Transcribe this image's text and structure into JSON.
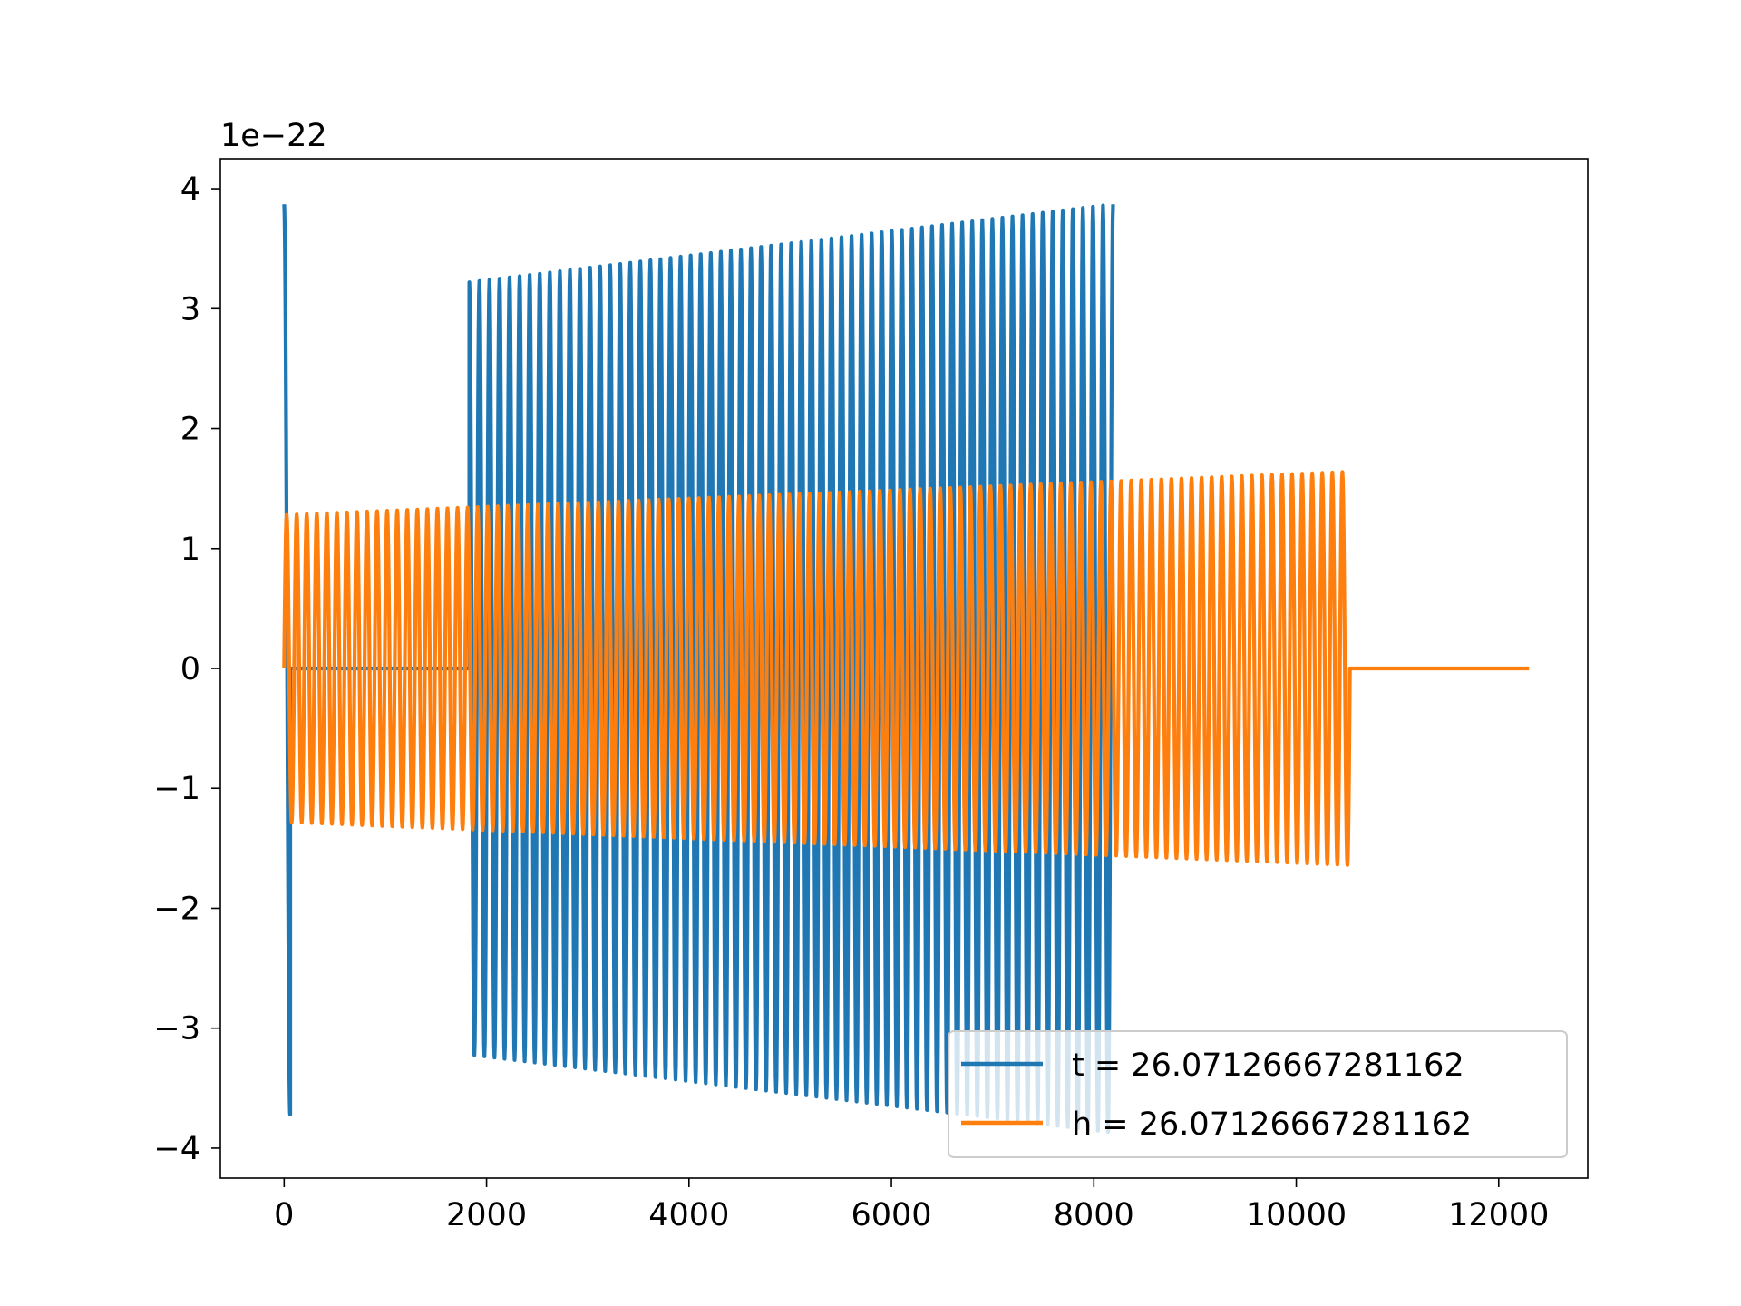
{
  "chart_data": {
    "type": "line",
    "title": "",
    "xlabel": "",
    "ylabel": "",
    "y_offset_label": "1e−22",
    "xlim": [
      -630,
      12880
    ],
    "ylim": [
      -4.25,
      4.25
    ],
    "x_ticks": [
      0,
      2000,
      4000,
      6000,
      8000,
      10000,
      12000
    ],
    "x_tick_labels": [
      "0",
      "2000",
      "4000",
      "6000",
      "8000",
      "10000",
      "12000"
    ],
    "y_ticks": [
      -4,
      -3,
      -2,
      -1,
      0,
      1,
      2,
      3,
      4
    ],
    "y_tick_labels": [
      "−4",
      "−3",
      "−2",
      "−1",
      "0",
      "1",
      "2",
      "3",
      "4"
    ],
    "grid": false,
    "legend_position": "lower-right",
    "series": [
      {
        "name": "t = 26.07126667281162",
        "color": "#1f77b4",
        "segments": [
          {
            "x_start": 0,
            "x_end": 60,
            "cycles": 0.5,
            "amp_start": 3.87,
            "amp_end": 3.72,
            "phase": "cos"
          },
          {
            "x_start": 60,
            "x_end": 1830,
            "flat": 0
          },
          {
            "x_start": 1830,
            "x_end": 8190,
            "cycles": 64,
            "amp_start": 3.22,
            "amp_end": 3.87,
            "phase": "cos"
          }
        ]
      },
      {
        "name": "h = 26.07126667281162",
        "color": "#ff7f0e",
        "segments": [
          {
            "x_start": 0,
            "x_end": 10530,
            "cycles": 106,
            "amp_start": 1.28,
            "amp_end": 1.64,
            "phase": "sin"
          },
          {
            "x_start": 10530,
            "x_end": 12300,
            "flat": 0
          }
        ]
      }
    ]
  }
}
